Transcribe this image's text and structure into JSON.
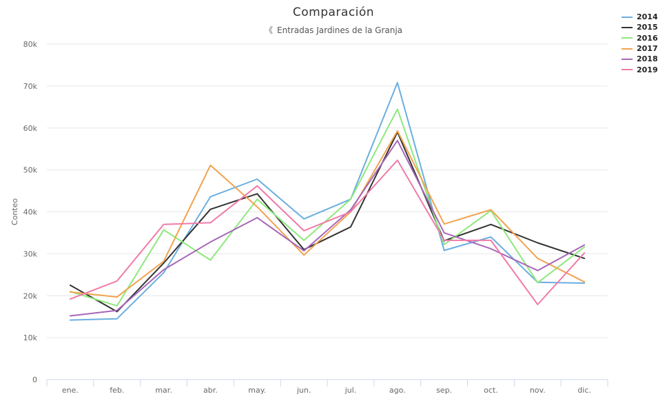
{
  "chart_data": {
    "type": "line",
    "title": "Comparación",
    "subtitle": "Entradas Jardines de la Granja",
    "ylabel": "Conteo",
    "xlabel": "",
    "categories": [
      "ene.",
      "feb.",
      "mar.",
      "abr.",
      "may.",
      "jun.",
      "jul.",
      "ago.",
      "sep.",
      "oct.",
      "nov.",
      "dic."
    ],
    "ylim": [
      0,
      80000
    ],
    "yticks": [
      0,
      10000,
      20000,
      30000,
      40000,
      50000,
      60000,
      70000,
      80000
    ],
    "ytick_labels": [
      "0",
      "10k",
      "20k",
      "30k",
      "40k",
      "50k",
      "60k",
      "70k",
      "80k"
    ],
    "grid": true,
    "legend_position": "top-right",
    "series": [
      {
        "name": "2014",
        "color": "#6aaee0",
        "values": [
          14200,
          14500,
          25500,
          43600,
          47800,
          38300,
          43000,
          70800,
          30800,
          34000,
          23200,
          23000
        ]
      },
      {
        "name": "2015",
        "color": "#333333",
        "values": [
          22500,
          16200,
          27800,
          40600,
          44300,
          31000,
          36400,
          59000,
          33100,
          37000,
          32600,
          28900
        ]
      },
      {
        "name": "2016",
        "color": "#8de87a",
        "values": [
          21000,
          17600,
          35700,
          28500,
          43000,
          33200,
          43000,
          64500,
          32200,
          40300,
          23100,
          31600
        ]
      },
      {
        "name": "2017",
        "color": "#f2a24e",
        "values": [
          20900,
          19700,
          28200,
          51100,
          41200,
          29700,
          40000,
          59300,
          37100,
          40500,
          28900,
          23300
        ]
      },
      {
        "name": "2018",
        "color": "#a666b8",
        "values": [
          15200,
          16500,
          26200,
          32800,
          38600,
          30700,
          40500,
          57000,
          35000,
          31200,
          26000,
          32100
        ]
      },
      {
        "name": "2019",
        "color": "#f07aa8",
        "values": [
          19200,
          23500,
          37000,
          37400,
          46200,
          35500,
          40000,
          52300,
          33200,
          33200,
          17900,
          30200
        ]
      }
    ]
  }
}
